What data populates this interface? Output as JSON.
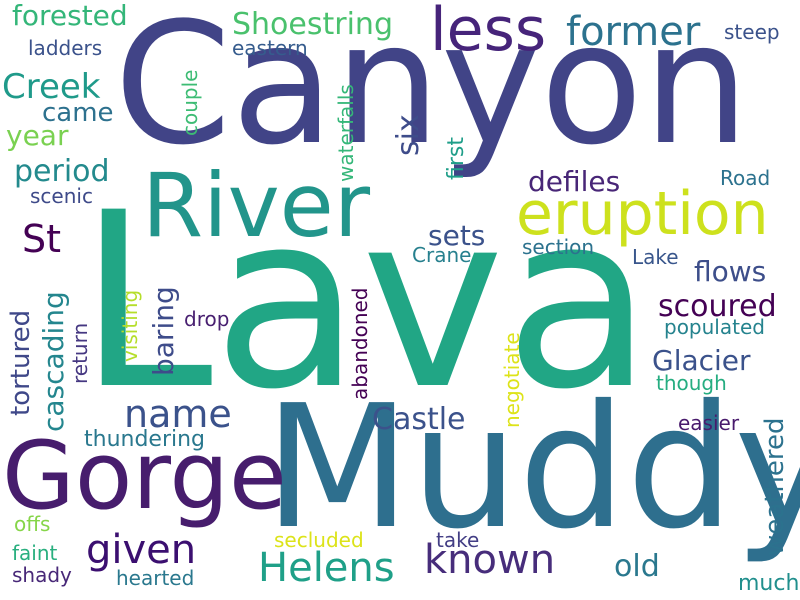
{
  "words": {
    "lava": {
      "text": "Lava",
      "color": "#21a685"
    },
    "canyon": {
      "text": "Canyon",
      "color": "#414487"
    },
    "muddy": {
      "text": "Muddy",
      "color": "#2e6f8e"
    },
    "river": {
      "text": "River",
      "color": "#22958b"
    },
    "gorge": {
      "text": "Gorge",
      "color": "#471d6d"
    },
    "eruption": {
      "text": "eruption",
      "color": "#cde11d"
    },
    "less": {
      "text": "less",
      "color": "#46247a"
    },
    "former": {
      "text": "former",
      "color": "#2c728e"
    },
    "shoestring": {
      "text": "Shoestring",
      "color": "#4ac16d"
    },
    "forested": {
      "text": "forested",
      "color": "#34b679"
    },
    "ladders": {
      "text": "ladders",
      "color": "#3b528b"
    },
    "creek": {
      "text": "Creek",
      "color": "#1f9a8a"
    },
    "came": {
      "text": "came",
      "color": "#2d718e"
    },
    "year": {
      "text": "year",
      "color": "#7ad151"
    },
    "period": {
      "text": "period",
      "color": "#238a8d"
    },
    "scenic": {
      "text": "scenic",
      "color": "#3e4a89"
    },
    "st": {
      "text": "St",
      "color": "#440154"
    },
    "tortured": {
      "text": "tortured",
      "color": "#3f4889"
    },
    "cascading": {
      "text": "cascading",
      "color": "#24868e"
    },
    "return": {
      "text": "return",
      "color": "#453781"
    },
    "visiting": {
      "text": "visiting",
      "color": "#b5de2b"
    },
    "baring": {
      "text": "baring",
      "color": "#3e4c8a"
    },
    "name": {
      "text": "name",
      "color": "#3b528b"
    },
    "thundering": {
      "text": "thundering",
      "color": "#2a788e"
    },
    "offs": {
      "text": "offs",
      "color": "#86d549"
    },
    "faint": {
      "text": "faint",
      "color": "#29af7f"
    },
    "shady": {
      "text": "shady",
      "color": "#482878"
    },
    "hearted": {
      "text": "hearted",
      "color": "#2a788e"
    },
    "given": {
      "text": "given",
      "color": "#3b0f70"
    },
    "helens": {
      "text": "Helens",
      "color": "#1fa088"
    },
    "known": {
      "text": "known",
      "color": "#472d7b"
    },
    "old": {
      "text": "old",
      "color": "#2a788e"
    },
    "much": {
      "text": "much",
      "color": "#218f8d"
    },
    "eastern": {
      "text": "eastern",
      "color": "#365c8d"
    },
    "couple": {
      "text": "couple",
      "color": "#3dbc74"
    },
    "waterfalls": {
      "text": "waterfalls",
      "color": "#35b779"
    },
    "six": {
      "text": "six",
      "color": "#3e4c8a"
    },
    "first": {
      "text": "first",
      "color": "#1f9e89"
    },
    "defiles": {
      "text": "defiles",
      "color": "#482677"
    },
    "steep": {
      "text": "steep",
      "color": "#3b528b"
    },
    "road": {
      "text": "Road",
      "color": "#2c728e"
    },
    "sets": {
      "text": "sets",
      "color": "#3b528b"
    },
    "section": {
      "text": "section",
      "color": "#2c728e"
    },
    "crane": {
      "text": "Crane",
      "color": "#27808e"
    },
    "lake": {
      "text": "Lake",
      "color": "#39568c"
    },
    "flows": {
      "text": "flows",
      "color": "#3d4e8a"
    },
    "scoured": {
      "text": "scoured",
      "color": "#440154"
    },
    "populated": {
      "text": "populated",
      "color": "#25838e"
    },
    "glacier": {
      "text": "Glacier",
      "color": "#3b528b"
    },
    "though": {
      "text": "though",
      "color": "#26ad81"
    },
    "weathered": {
      "text": "weathered",
      "color": "#2c728e"
    },
    "easier": {
      "text": "easier",
      "color": "#481a6c"
    },
    "drop": {
      "text": "drop",
      "color": "#481f70"
    },
    "abandoned": {
      "text": "abandoned",
      "color": "#440154"
    },
    "negotiate": {
      "text": "negotiate",
      "color": "#dde318"
    },
    "castle": {
      "text": "Castle",
      "color": "#3b528b"
    },
    "take": {
      "text": "take",
      "color": "#433e85"
    },
    "secluded": {
      "text": "secluded",
      "color": "#dce319"
    }
  }
}
